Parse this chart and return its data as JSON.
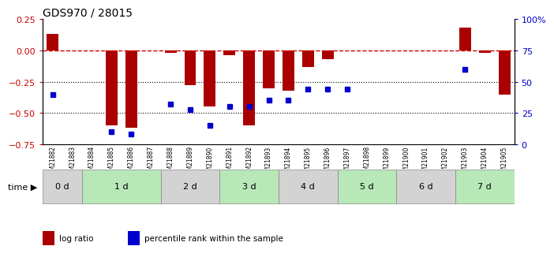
{
  "title": "GDS970 / 28015",
  "samples": [
    "GSM21882",
    "GSM21883",
    "GSM21884",
    "GSM21885",
    "GSM21886",
    "GSM21887",
    "GSM21888",
    "GSM21889",
    "GSM21890",
    "GSM21891",
    "GSM21892",
    "GSM21893",
    "GSM21894",
    "GSM21895",
    "GSM21896",
    "GSM21897",
    "GSM21898",
    "GSM21899",
    "GSM21900",
    "GSM21901",
    "GSM21902",
    "GSM21903",
    "GSM21904",
    "GSM21905"
  ],
  "log_ratio": [
    0.13,
    0.0,
    0.0,
    -0.6,
    -0.62,
    0.0,
    -0.02,
    -0.28,
    -0.45,
    -0.04,
    -0.6,
    -0.3,
    -0.32,
    -0.13,
    -0.07,
    0.0,
    0.0,
    0.0,
    0.0,
    0.0,
    0.0,
    0.18,
    -0.02,
    -0.35
  ],
  "pct_rank": [
    40,
    null,
    null,
    10,
    8,
    null,
    32,
    28,
    15,
    30,
    30,
    35,
    35,
    44,
    44,
    44,
    null,
    null,
    null,
    null,
    null,
    60,
    null,
    null
  ],
  "time_groups": [
    {
      "label": "0 d",
      "start": 0,
      "end": 2,
      "color": "#d3d3d3"
    },
    {
      "label": "1 d",
      "start": 2,
      "end": 6,
      "color": "#b8e8b8"
    },
    {
      "label": "2 d",
      "start": 6,
      "end": 9,
      "color": "#d3d3d3"
    },
    {
      "label": "3 d",
      "start": 9,
      "end": 12,
      "color": "#b8e8b8"
    },
    {
      "label": "4 d",
      "start": 12,
      "end": 15,
      "color": "#d3d3d3"
    },
    {
      "label": "5 d",
      "start": 15,
      "end": 18,
      "color": "#b8e8b8"
    },
    {
      "label": "6 d",
      "start": 18,
      "end": 21,
      "color": "#d3d3d3"
    },
    {
      "label": "7 d",
      "start": 21,
      "end": 24,
      "color": "#b8e8b8"
    }
  ],
  "ylim_left": [
    -0.75,
    0.25
  ],
  "ylim_right": [
    0,
    100
  ],
  "yticks_left": [
    0.25,
    0.0,
    -0.25,
    -0.5,
    -0.75
  ],
  "yticks_right": [
    100,
    75,
    50,
    25,
    0
  ],
  "bar_color": "#aa0000",
  "dot_color": "#0000cc",
  "hline_color": "#cc0000",
  "hline_style": "--",
  "grid_color": "black",
  "grid_style": ":",
  "grid_levels": [
    -0.25,
    -0.5
  ],
  "bg_color": "white",
  "title_color": "black",
  "title_fontsize": 10
}
